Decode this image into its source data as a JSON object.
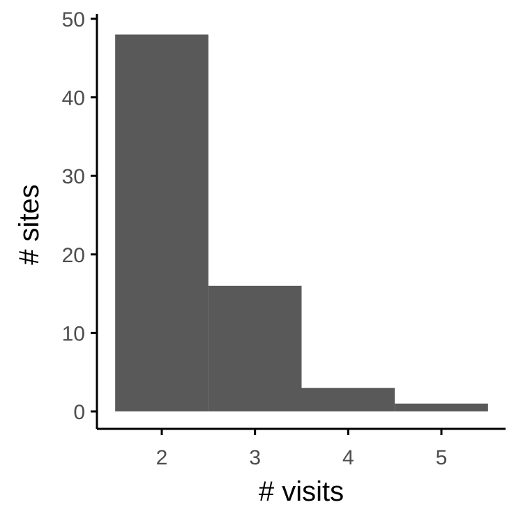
{
  "chart_data": {
    "type": "bar",
    "categories": [
      "2",
      "3",
      "4",
      "5"
    ],
    "x": [
      2,
      3,
      4,
      5
    ],
    "values": [
      48,
      16,
      3,
      1
    ],
    "xlabel": "# visits",
    "ylabel": "# sites",
    "xlim": [
      1.5,
      5.5
    ],
    "ylim": [
      0,
      50
    ],
    "x_ticks": [
      "2",
      "3",
      "4",
      "5"
    ],
    "y_ticks": [
      "0",
      "10",
      "20",
      "30",
      "40",
      "50"
    ],
    "grid": false,
    "legend": "none",
    "colors": {
      "bar": "#595959",
      "axis": "#000000",
      "tick_label": "#4d4d4d"
    }
  }
}
